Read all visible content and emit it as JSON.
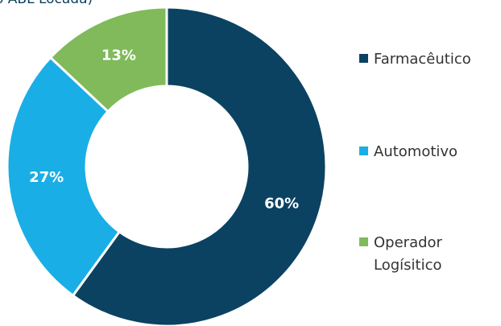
{
  "chart_data": {
    "type": "donut",
    "title": "o ABL Locada)",
    "categories": [
      "Farmacêutico",
      "Automotivo",
      "Operador Logísitico"
    ],
    "values": [
      60,
      27,
      13
    ],
    "value_labels": [
      "60%",
      "27%",
      "13%"
    ],
    "colors": [
      "#0b4262",
      "#1aaee6",
      "#80ba5a"
    ],
    "legend": "right"
  }
}
